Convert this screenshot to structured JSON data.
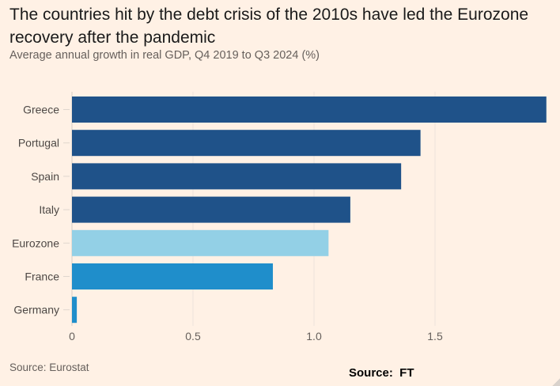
{
  "chart_data": {
    "type": "bar",
    "orientation": "horizontal",
    "title": "The countries hit by the debt crisis of the 2010s have led the Eurozone recovery after the pandemic",
    "subtitle": "Average annual growth in real GDP, Q4 2019 to Q3 2024 (%)",
    "xlabel": "",
    "ylabel": "",
    "categories": [
      "Greece",
      "Portugal",
      "Spain",
      "Italy",
      "Eurozone",
      "France",
      "Germany"
    ],
    "values": [
      1.96,
      1.44,
      1.36,
      1.15,
      1.06,
      0.83,
      0.02
    ],
    "colors": [
      "#1f5289",
      "#1f5289",
      "#1f5289",
      "#1f5289",
      "#93d0e6",
      "#1f8ecb",
      "#1f8ecb"
    ],
    "xlim": [
      0,
      1.96
    ],
    "xticks": [
      0,
      0.5,
      1.0,
      1.5
    ],
    "xtick_labels": [
      "0",
      "0.5",
      "1.0",
      "1.5"
    ],
    "grid": true,
    "legend": "none"
  },
  "source": "Source: Eurostat",
  "source_ft": "Source:  FT"
}
